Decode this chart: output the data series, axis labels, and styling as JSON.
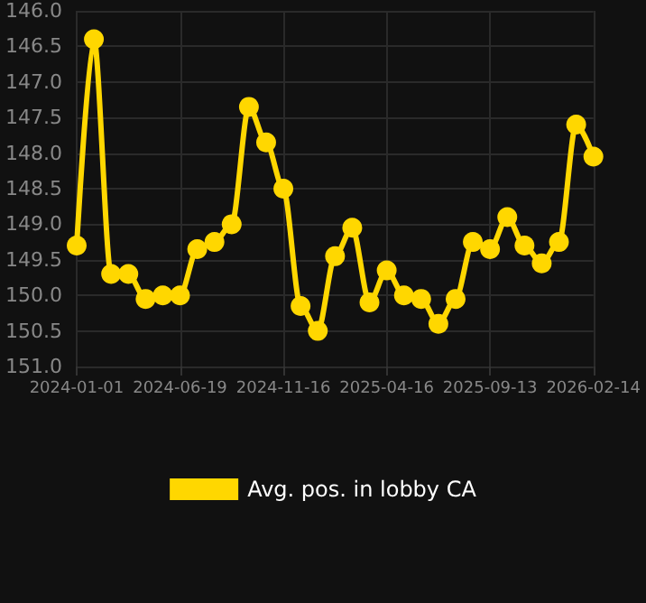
{
  "chart_data": {
    "type": "line",
    "categories": [
      "2024-01-01",
      null,
      null,
      null,
      null,
      null,
      "2024-06-19",
      null,
      null,
      null,
      null,
      null,
      "2024-11-16",
      null,
      null,
      null,
      null,
      null,
      "2025-04-16",
      null,
      null,
      null,
      null,
      null,
      "2025-09-13",
      null,
      null,
      null,
      null,
      null,
      "2026-02-14"
    ],
    "series": [
      {
        "name": "Avg. pos. in lobby CA",
        "color": "#ffd700",
        "values": [
          149.3,
          146.4,
          149.7,
          149.7,
          150.05,
          150.0,
          150.0,
          149.35,
          149.25,
          149.0,
          147.35,
          147.85,
          148.5,
          150.15,
          150.5,
          149.45,
          149.05,
          150.1,
          149.65,
          150.0,
          150.05,
          150.4,
          150.05,
          149.25,
          149.35,
          148.9,
          149.3,
          149.55,
          149.25,
          147.6,
          148.05
        ]
      }
    ],
    "ylim": [
      151.0,
      146.0
    ],
    "yticks": [
      {
        "value": 146,
        "label": "146.0"
      },
      146.5,
      {
        "value": 147,
        "label": "147.0"
      },
      147.5,
      {
        "value": 148,
        "label": "148.0"
      },
      148.5,
      {
        "value": 149,
        "label": "149.0"
      },
      149.5,
      {
        "value": 150,
        "label": "150.0"
      },
      150.5,
      {
        "value": 151,
        "label": "151.0"
      }
    ],
    "grid": true,
    "legend": "bottom",
    "marker": "circle",
    "line_style": "solid"
  }
}
